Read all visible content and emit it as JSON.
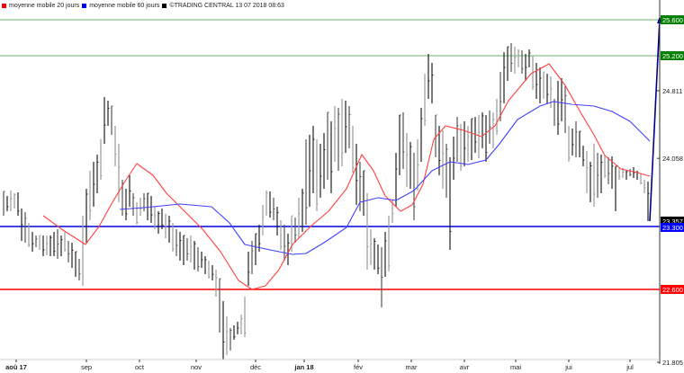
{
  "legend": [
    {
      "label": "moyenne mobile 20 jours",
      "color": "#ff0000"
    },
    {
      "label": "moyenne mobile 60 jours",
      "color": "#0000ff"
    },
    {
      "label": "©TRADING CENTRAL 13 07 2018 08:63",
      "color": "#000000"
    }
  ],
  "chart_data": {
    "type": "line",
    "title": "",
    "xlabel": "",
    "ylabel": "",
    "x_ticks": [
      "aoû 17",
      "sep",
      "oct",
      "nov",
      "déc",
      "jan 18",
      "fév",
      "mar",
      "avr",
      "mai",
      "jui",
      "jul"
    ],
    "y_ticks": [
      {
        "value": 25.6,
        "label": "25.600",
        "style": "tag",
        "color": "#008000"
      },
      {
        "value": 25.2,
        "label": "25.200",
        "style": "tag",
        "color": "#008000"
      },
      {
        "value": 24.811,
        "label": "24.811",
        "style": "tick"
      },
      {
        "value": 24.058,
        "label": "24.058",
        "style": "tick"
      },
      {
        "value": 23.357,
        "label": "23.357",
        "style": "tag",
        "color": "#000000"
      },
      {
        "value": 23.3,
        "label": "23.300",
        "style": "tag",
        "color": "#0000ff"
      },
      {
        "value": 22.6,
        "label": "22.600",
        "style": "tag",
        "color": "#ff0000"
      },
      {
        "value": 21.805,
        "label": "21.805",
        "style": "tick"
      }
    ],
    "ylim": [
      21.805,
      25.75
    ],
    "grid": false,
    "horizontal_levels": [
      {
        "value": 25.6,
        "color": "#6ab56a",
        "role": "resistance"
      },
      {
        "value": 25.2,
        "color": "#6ab56a",
        "role": "resistance"
      },
      {
        "value": 23.3,
        "color": "#0000dd",
        "role": "pivot"
      },
      {
        "value": 22.6,
        "color": "#ff0000",
        "role": "support"
      }
    ],
    "series": [
      {
        "name": "moyenne mobile 20 jours",
        "color": "#ff4040",
        "points": [
          [
            48,
            240
          ],
          [
            70,
            256
          ],
          [
            95,
            272
          ],
          [
            110,
            252
          ],
          [
            125,
            225
          ],
          [
            140,
            200
          ],
          [
            152,
            182
          ],
          [
            170,
            195
          ],
          [
            185,
            215
          ],
          [
            205,
            235
          ],
          [
            225,
            255
          ],
          [
            245,
            280
          ],
          [
            265,
            312
          ],
          [
            280,
            322
          ],
          [
            295,
            318
          ],
          [
            310,
            300
          ],
          [
            325,
            272
          ],
          [
            345,
            252
          ],
          [
            365,
            235
          ],
          [
            385,
            210
          ],
          [
            402,
            172
          ],
          [
            415,
            190
          ],
          [
            428,
            218
          ],
          [
            445,
            235
          ],
          [
            458,
            228
          ],
          [
            470,
            205
          ],
          [
            482,
            155
          ],
          [
            495,
            140
          ],
          [
            515,
            145
          ],
          [
            535,
            152
          ],
          [
            550,
            140
          ],
          [
            565,
            112
          ],
          [
            590,
            82
          ],
          [
            610,
            71
          ],
          [
            628,
            95
          ],
          [
            645,
            125
          ],
          [
            660,
            150
          ],
          [
            672,
            173
          ],
          [
            690,
            188
          ],
          [
            708,
            192
          ],
          [
            722,
            196
          ]
        ]
      },
      {
        "name": "moyenne mobile 60 jours",
        "color": "#4040ff",
        "points": [
          [
            133,
            233
          ],
          [
            160,
            231
          ],
          [
            200,
            227
          ],
          [
            235,
            230
          ],
          [
            255,
            248
          ],
          [
            272,
            272
          ],
          [
            300,
            278
          ],
          [
            325,
            283
          ],
          [
            340,
            282
          ],
          [
            360,
            270
          ],
          [
            385,
            253
          ],
          [
            400,
            225
          ],
          [
            420,
            220
          ],
          [
            440,
            223
          ],
          [
            460,
            212
          ],
          [
            480,
            190
          ],
          [
            500,
            180
          ],
          [
            520,
            183
          ],
          [
            540,
            178
          ],
          [
            555,
            160
          ],
          [
            575,
            133
          ],
          [
            600,
            118
          ],
          [
            615,
            113
          ],
          [
            635,
            116
          ],
          [
            660,
            118
          ],
          [
            680,
            124
          ],
          [
            700,
            135
          ],
          [
            722,
            157
          ]
        ]
      },
      {
        "name": "last-move",
        "color": "#000080",
        "points": [
          [
            722,
            246
          ],
          [
            733,
            21
          ]
        ]
      }
    ],
    "price_bars_note": "OHLC bar series (black/grey) from Aug 2017 to Jul 2018 oscillating between ~21.9 and ~25.4"
  },
  "bars": [
    [
      4,
      213,
      240
    ],
    [
      8,
      218,
      235
    ],
    [
      12,
      212,
      235
    ],
    [
      16,
      215,
      232
    ],
    [
      20,
      214,
      240
    ],
    [
      24,
      232,
      268
    ],
    [
      28,
      236,
      270
    ],
    [
      32,
      248,
      275
    ],
    [
      36,
      258,
      280
    ],
    [
      40,
      262,
      275
    ],
    [
      44,
      262,
      278
    ],
    [
      48,
      262,
      285
    ],
    [
      52,
      262,
      284
    ],
    [
      56,
      262,
      285
    ],
    [
      60,
      258,
      285
    ],
    [
      64,
      255,
      288
    ],
    [
      68,
      262,
      285
    ],
    [
      72,
      258,
      280
    ],
    [
      76,
      268,
      292
    ],
    [
      80,
      270,
      298
    ],
    [
      84,
      280,
      308
    ],
    [
      88,
      288,
      312
    ],
    [
      92,
      240,
      318
    ],
    [
      96,
      210,
      270
    ],
    [
      100,
      190,
      245
    ],
    [
      104,
      180,
      230
    ],
    [
      108,
      172,
      215
    ],
    [
      112,
      155,
      200
    ],
    [
      116,
      108,
      160
    ],
    [
      120,
      112,
      140
    ],
    [
      124,
      118,
      150
    ],
    [
      128,
      140,
      185
    ],
    [
      132,
      160,
      225
    ],
    [
      136,
      200,
      240
    ],
    [
      140,
      210,
      245
    ],
    [
      144,
      195,
      230
    ],
    [
      148,
      215,
      240
    ],
    [
      152,
      225,
      250
    ],
    [
      156,
      220,
      240
    ],
    [
      160,
      215,
      235
    ],
    [
      164,
      215,
      245
    ],
    [
      168,
      218,
      248
    ],
    [
      172,
      230,
      255
    ],
    [
      176,
      235,
      260
    ],
    [
      180,
      232,
      255
    ],
    [
      184,
      238,
      265
    ],
    [
      188,
      240,
      270
    ],
    [
      192,
      248,
      280
    ],
    [
      196,
      255,
      285
    ],
    [
      200,
      258,
      290
    ],
    [
      204,
      262,
      295
    ],
    [
      208,
      265,
      290
    ],
    [
      212,
      262,
      292
    ],
    [
      216,
      268,
      300
    ],
    [
      220,
      275,
      302
    ],
    [
      224,
      280,
      298
    ],
    [
      228,
      285,
      305
    ],
    [
      232,
      290,
      310
    ],
    [
      236,
      295,
      312
    ],
    [
      240,
      300,
      330
    ],
    [
      244,
      310,
      370
    ],
    [
      248,
      335,
      400
    ],
    [
      252,
      352,
      395
    ],
    [
      256,
      365,
      390
    ],
    [
      260,
      362,
      378
    ],
    [
      264,
      358,
      372
    ],
    [
      268,
      350,
      372
    ],
    [
      272,
      330,
      375
    ],
    [
      276,
      280,
      318
    ],
    [
      280,
      268,
      305
    ],
    [
      284,
      260,
      295
    ],
    [
      288,
      250,
      280
    ],
    [
      292,
      228,
      262
    ],
    [
      296,
      212,
      240
    ],
    [
      300,
      213,
      242
    ],
    [
      304,
      220,
      245
    ],
    [
      308,
      230,
      262
    ],
    [
      312,
      245,
      278
    ],
    [
      316,
      250,
      290
    ],
    [
      320,
      260,
      295
    ],
    [
      324,
      240,
      280
    ],
    [
      328,
      242,
      270
    ],
    [
      332,
      220,
      265
    ],
    [
      336,
      210,
      258
    ],
    [
      340,
      155,
      250
    ],
    [
      344,
      150,
      230
    ],
    [
      348,
      140,
      215
    ],
    [
      352,
      155,
      235
    ],
    [
      356,
      160,
      220
    ],
    [
      360,
      148,
      210
    ],
    [
      364,
      125,
      200
    ],
    [
      368,
      135,
      215
    ],
    [
      372,
      118,
      180
    ],
    [
      376,
      120,
      190
    ],
    [
      380,
      110,
      185
    ],
    [
      384,
      112,
      170
    ],
    [
      388,
      118,
      165
    ],
    [
      392,
      140,
      192
    ],
    [
      396,
      160,
      228
    ],
    [
      400,
      180,
      235
    ],
    [
      404,
      190,
      240
    ],
    [
      408,
      215,
      300
    ],
    [
      412,
      255,
      295
    ],
    [
      416,
      265,
      300
    ],
    [
      420,
      272,
      305
    ],
    [
      424,
      275,
      342
    ],
    [
      428,
      258,
      308
    ],
    [
      432,
      240,
      302
    ],
    [
      436,
      222,
      248
    ],
    [
      440,
      170,
      230
    ],
    [
      444,
      128,
      195
    ],
    [
      448,
      125,
      188
    ],
    [
      452,
      148,
      208
    ],
    [
      456,
      158,
      210
    ],
    [
      460,
      170,
      245
    ],
    [
      464,
      155,
      212
    ],
    [
      468,
      120,
      180
    ],
    [
      472,
      82,
      140
    ],
    [
      476,
      60,
      110
    ],
    [
      480,
      70,
      115
    ],
    [
      484,
      128,
      175
    ],
    [
      488,
      140,
      195
    ],
    [
      492,
      145,
      210
    ],
    [
      496,
      160,
      220
    ],
    [
      500,
      175,
      278
    ],
    [
      504,
      152,
      200
    ],
    [
      508,
      130,
      180
    ],
    [
      512,
      138,
      190
    ],
    [
      516,
      135,
      185
    ],
    [
      520,
      140,
      180
    ],
    [
      524,
      132,
      178
    ],
    [
      528,
      130,
      170
    ],
    [
      532,
      128,
      176
    ],
    [
      536,
      125,
      165
    ],
    [
      540,
      128,
      180
    ],
    [
      544,
      123,
      160
    ],
    [
      548,
      125,
      165
    ],
    [
      552,
      110,
      150
    ],
    [
      556,
      80,
      135
    ],
    [
      560,
      58,
      115
    ],
    [
      564,
      52,
      90
    ],
    [
      568,
      48,
      80
    ],
    [
      572,
      52,
      82
    ],
    [
      576,
      55,
      75
    ],
    [
      580,
      56,
      82
    ],
    [
      584,
      60,
      90
    ],
    [
      588,
      55,
      75
    ],
    [
      592,
      62,
      100
    ],
    [
      596,
      70,
      110
    ],
    [
      600,
      75,
      115
    ],
    [
      604,
      80,
      110
    ],
    [
      608,
      82,
      115
    ],
    [
      612,
      85,
      120
    ],
    [
      616,
      110,
      140
    ],
    [
      620,
      90,
      150
    ],
    [
      624,
      87,
      135
    ],
    [
      628,
      96,
      148
    ],
    [
      632,
      140,
      180
    ],
    [
      636,
      143,
      173
    ],
    [
      640,
      135,
      175
    ],
    [
      644,
      146,
      175
    ],
    [
      648,
      162,
      185
    ],
    [
      652,
      168,
      215
    ],
    [
      656,
      180,
      225
    ],
    [
      660,
      160,
      230
    ],
    [
      664,
      170,
      220
    ],
    [
      668,
      172,
      215
    ],
    [
      672,
      173,
      198
    ],
    [
      676,
      175,
      205
    ],
    [
      680,
      174,
      210
    ],
    [
      684,
      185,
      235
    ],
    [
      688,
      187,
      200
    ],
    [
      692,
      187,
      198
    ],
    [
      696,
      190,
      200
    ],
    [
      700,
      188,
      196
    ],
    [
      704,
      186,
      198
    ],
    [
      708,
      190,
      200
    ],
    [
      712,
      193,
      205
    ],
    [
      716,
      200,
      215
    ],
    [
      720,
      202,
      246
    ]
  ]
}
